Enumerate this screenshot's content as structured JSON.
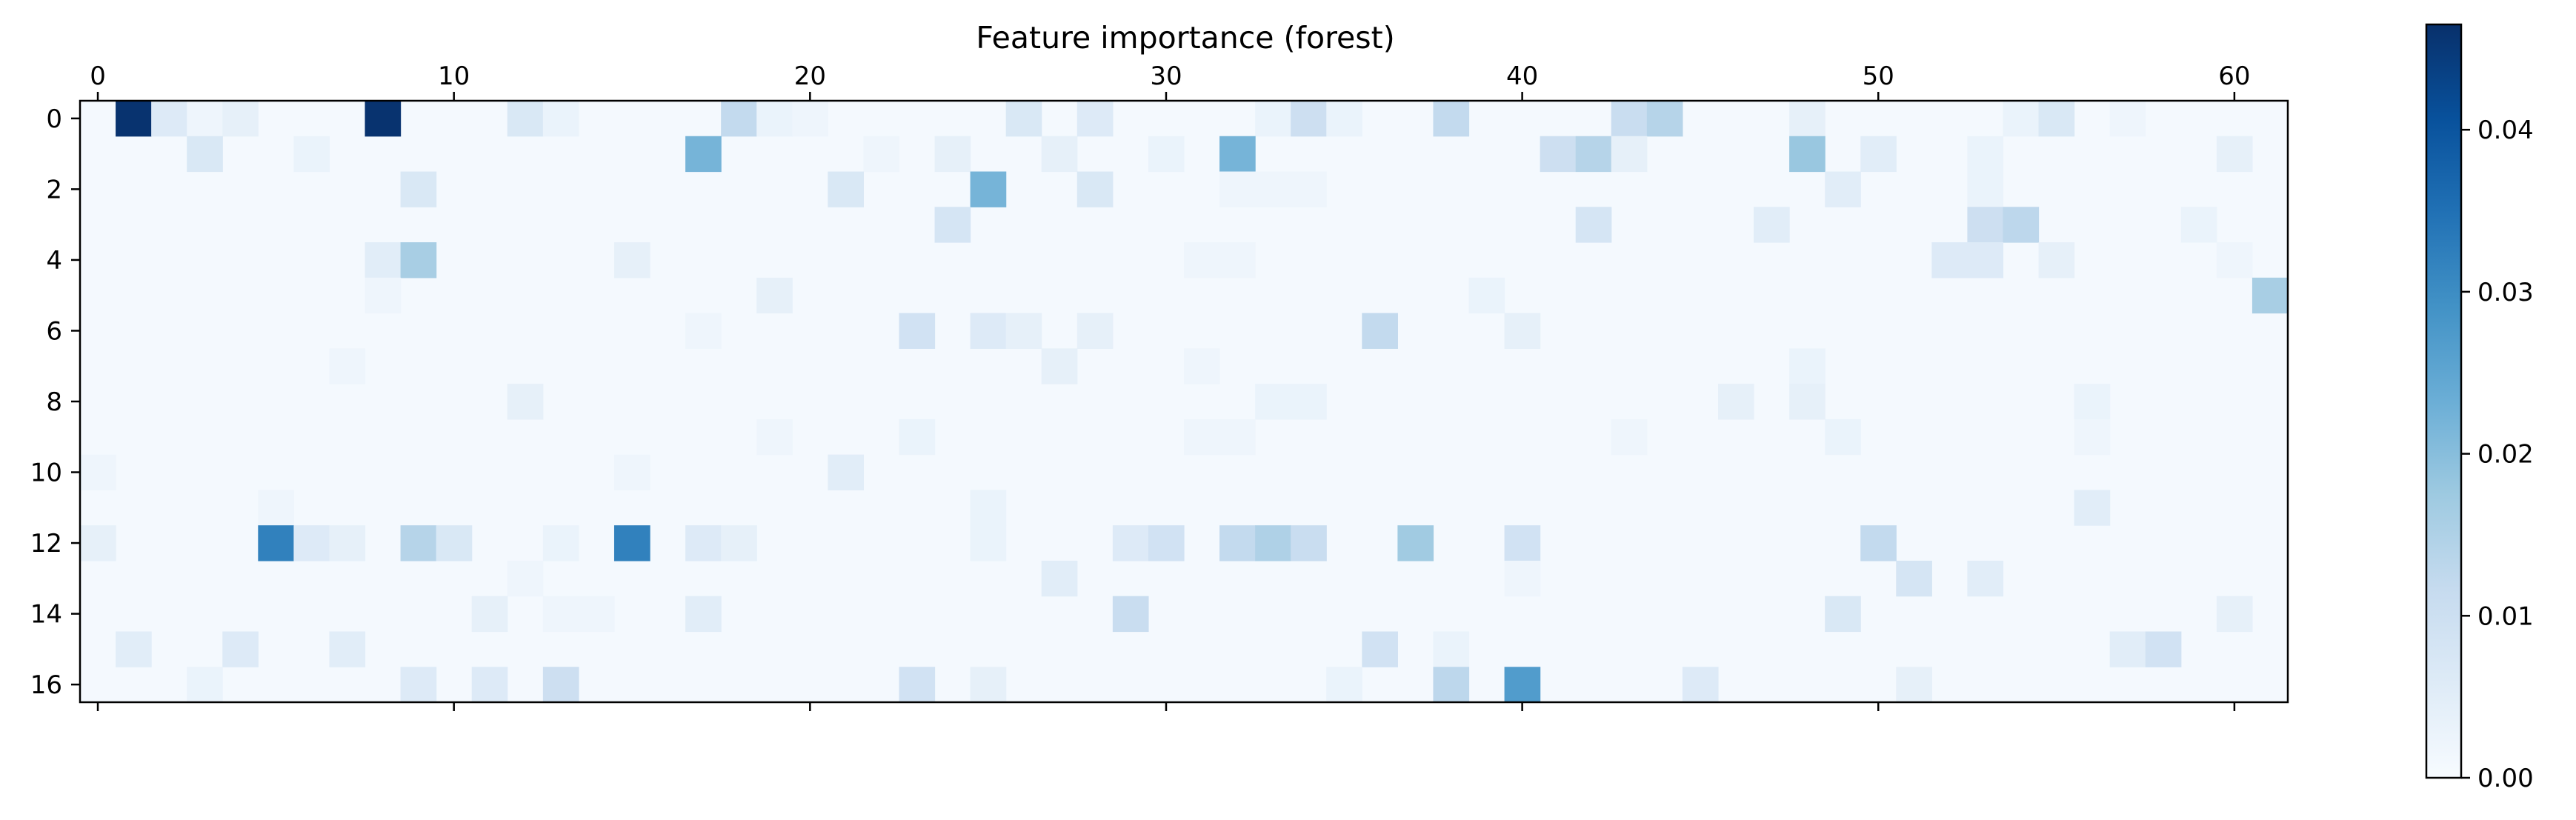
{
  "chart_data": {
    "type": "heatmap",
    "title": "Feature importance (forest)",
    "xlabel": "",
    "ylabel": "",
    "n_rows": 17,
    "n_cols": 62,
    "x_ticks": [
      0,
      10,
      20,
      30,
      40,
      50,
      60
    ],
    "x_tick_position": "top-and-bottom",
    "y_ticks": [
      0,
      2,
      4,
      6,
      8,
      10,
      12,
      14,
      16
    ],
    "colormap": "Blues",
    "colormap_stops": [
      "#f7fbff",
      "#deebf7",
      "#c6dbef",
      "#9ecae1",
      "#6baed6",
      "#4292c6",
      "#2171b5",
      "#08519c",
      "#08306b"
    ],
    "vmin": 0.0,
    "vmax": 0.0465,
    "colorbar": {
      "position": "right",
      "ticks": [
        0.0,
        0.01,
        0.02,
        0.03,
        0.04
      ],
      "tick_labels": [
        "0.00",
        "0.01",
        "0.02",
        "0.03",
        "0.04"
      ]
    },
    "background_value": 0.0008,
    "cells": [
      [
        0,
        1,
        0.046
      ],
      [
        0,
        2,
        0.006
      ],
      [
        0,
        3,
        0.002
      ],
      [
        0,
        4,
        0.004
      ],
      [
        0,
        8,
        0.046
      ],
      [
        0,
        12,
        0.007
      ],
      [
        0,
        13,
        0.003
      ],
      [
        0,
        18,
        0.012
      ],
      [
        0,
        19,
        0.003
      ],
      [
        0,
        20,
        0.002
      ],
      [
        0,
        26,
        0.007
      ],
      [
        0,
        28,
        0.006
      ],
      [
        0,
        33,
        0.003
      ],
      [
        0,
        34,
        0.01
      ],
      [
        0,
        35,
        0.003
      ],
      [
        0,
        38,
        0.012
      ],
      [
        0,
        43,
        0.011
      ],
      [
        0,
        44,
        0.014
      ],
      [
        0,
        48,
        0.004
      ],
      [
        0,
        54,
        0.003
      ],
      [
        0,
        55,
        0.007
      ],
      [
        0,
        57,
        0.002
      ],
      [
        1,
        3,
        0.007
      ],
      [
        1,
        6,
        0.003
      ],
      [
        1,
        17,
        0.022
      ],
      [
        1,
        22,
        0.002
      ],
      [
        1,
        24,
        0.004
      ],
      [
        1,
        27,
        0.004
      ],
      [
        1,
        30,
        0.003
      ],
      [
        1,
        32,
        0.022
      ],
      [
        1,
        41,
        0.01
      ],
      [
        1,
        42,
        0.014
      ],
      [
        1,
        43,
        0.004
      ],
      [
        1,
        48,
        0.018
      ],
      [
        1,
        50,
        0.005
      ],
      [
        1,
        53,
        0.003
      ],
      [
        1,
        60,
        0.004
      ],
      [
        2,
        9,
        0.007
      ],
      [
        2,
        21,
        0.007
      ],
      [
        2,
        25,
        0.022
      ],
      [
        2,
        28,
        0.007
      ],
      [
        2,
        32,
        0.002
      ],
      [
        2,
        33,
        0.002
      ],
      [
        2,
        34,
        0.002
      ],
      [
        2,
        49,
        0.005
      ],
      [
        2,
        53,
        0.003
      ],
      [
        3,
        24,
        0.008
      ],
      [
        3,
        42,
        0.008
      ],
      [
        3,
        47,
        0.005
      ],
      [
        3,
        53,
        0.01
      ],
      [
        3,
        54,
        0.013
      ],
      [
        3,
        59,
        0.003
      ],
      [
        4,
        8,
        0.005
      ],
      [
        4,
        9,
        0.016
      ],
      [
        4,
        15,
        0.004
      ],
      [
        4,
        31,
        0.002
      ],
      [
        4,
        32,
        0.002
      ],
      [
        4,
        52,
        0.006
      ],
      [
        4,
        53,
        0.006
      ],
      [
        4,
        55,
        0.004
      ],
      [
        4,
        60,
        0.002
      ],
      [
        5,
        8,
        0.002
      ],
      [
        5,
        19,
        0.004
      ],
      [
        5,
        39,
        0.003
      ],
      [
        5,
        61,
        0.016
      ],
      [
        6,
        23,
        0.009
      ],
      [
        6,
        25,
        0.006
      ],
      [
        6,
        26,
        0.004
      ],
      [
        6,
        28,
        0.004
      ],
      [
        6,
        36,
        0.012
      ],
      [
        6,
        40,
        0.004
      ],
      [
        6,
        17,
        0.002
      ],
      [
        7,
        7,
        0.002
      ],
      [
        7,
        27,
        0.004
      ],
      [
        7,
        31,
        0.002
      ],
      [
        7,
        48,
        0.003
      ],
      [
        8,
        12,
        0.004
      ],
      [
        8,
        33,
        0.003
      ],
      [
        8,
        34,
        0.003
      ],
      [
        8,
        46,
        0.004
      ],
      [
        8,
        48,
        0.004
      ],
      [
        8,
        56,
        0.003
      ],
      [
        9,
        19,
        0.002
      ],
      [
        9,
        23,
        0.003
      ],
      [
        9,
        31,
        0.002
      ],
      [
        9,
        32,
        0.002
      ],
      [
        9,
        43,
        0.002
      ],
      [
        9,
        49,
        0.003
      ],
      [
        9,
        56,
        0.002
      ],
      [
        10,
        0,
        0.002
      ],
      [
        10,
        15,
        0.002
      ],
      [
        10,
        21,
        0.005
      ],
      [
        11,
        5,
        0.002
      ],
      [
        11,
        25,
        0.003
      ],
      [
        11,
        56,
        0.005
      ],
      [
        12,
        0,
        0.004
      ],
      [
        12,
        5,
        0.032
      ],
      [
        12,
        6,
        0.006
      ],
      [
        12,
        7,
        0.004
      ],
      [
        12,
        9,
        0.014
      ],
      [
        12,
        10,
        0.007
      ],
      [
        12,
        13,
        0.003
      ],
      [
        12,
        15,
        0.032
      ],
      [
        12,
        17,
        0.006
      ],
      [
        12,
        18,
        0.004
      ],
      [
        12,
        25,
        0.003
      ],
      [
        12,
        29,
        0.006
      ],
      [
        12,
        30,
        0.009
      ],
      [
        12,
        32,
        0.012
      ],
      [
        12,
        33,
        0.015
      ],
      [
        12,
        34,
        0.011
      ],
      [
        12,
        37,
        0.017
      ],
      [
        12,
        40,
        0.009
      ],
      [
        12,
        50,
        0.012
      ],
      [
        13,
        27,
        0.005
      ],
      [
        13,
        51,
        0.008
      ],
      [
        13,
        53,
        0.005
      ],
      [
        13,
        40,
        0.002
      ],
      [
        13,
        12,
        0.002
      ],
      [
        14,
        11,
        0.004
      ],
      [
        14,
        17,
        0.005
      ],
      [
        14,
        29,
        0.011
      ],
      [
        14,
        49,
        0.007
      ],
      [
        14,
        60,
        0.004
      ],
      [
        14,
        13,
        0.002
      ],
      [
        14,
        14,
        0.002
      ],
      [
        15,
        1,
        0.005
      ],
      [
        15,
        4,
        0.006
      ],
      [
        15,
        7,
        0.005
      ],
      [
        15,
        36,
        0.009
      ],
      [
        15,
        38,
        0.003
      ],
      [
        15,
        57,
        0.005
      ],
      [
        15,
        58,
        0.009
      ],
      [
        16,
        3,
        0.003
      ],
      [
        16,
        9,
        0.006
      ],
      [
        16,
        11,
        0.006
      ],
      [
        16,
        13,
        0.01
      ],
      [
        16,
        23,
        0.009
      ],
      [
        16,
        25,
        0.004
      ],
      [
        16,
        35,
        0.003
      ],
      [
        16,
        38,
        0.013
      ],
      [
        16,
        40,
        0.027
      ],
      [
        16,
        45,
        0.006
      ],
      [
        16,
        51,
        0.004
      ]
    ]
  }
}
